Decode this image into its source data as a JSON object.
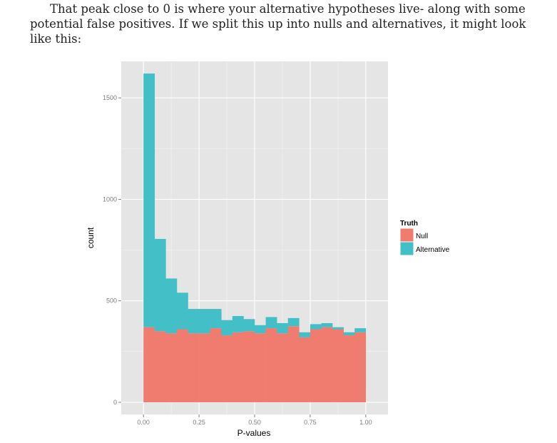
{
  "paragraph": "That peak close to 0 is where your alternative hypotheses live- along with some potential false positives. If we split this up into nulls and alternatives, it might look like this:",
  "colors": {
    "panel": "#e5e5e5",
    "grid_major": "#ffffff",
    "grid_minor": "#f2f2f2",
    "null": "#f07c6f",
    "alternative": "#43bfc7"
  },
  "chart_data": {
    "type": "bar",
    "stacked": true,
    "title": "",
    "xlabel": "P-values",
    "ylabel": "count",
    "xlim": [
      -0.1,
      1.1
    ],
    "ylim": [
      -60,
      1680
    ],
    "x_ticks": [
      0.0,
      0.25,
      0.5,
      0.75,
      1.0
    ],
    "x_tick_labels": [
      "0.00",
      "0.25",
      "0.50",
      "0.75",
      "1.00"
    ],
    "y_ticks": [
      0,
      500,
      1000,
      1500
    ],
    "y_tick_labels": [
      "0",
      "500",
      "1000",
      "1500"
    ],
    "bin_width": 0.05,
    "bins": [
      0.0,
      0.05,
      0.1,
      0.15,
      0.2,
      0.25,
      0.3,
      0.35,
      0.4,
      0.45,
      0.5,
      0.55,
      0.6,
      0.65,
      0.7,
      0.75,
      0.8,
      0.85,
      0.9,
      0.95
    ],
    "legend": {
      "title": "Truth",
      "position": "right",
      "entries": [
        "Null",
        "Alternative"
      ]
    },
    "series": [
      {
        "name": "Null",
        "values": [
          370,
          350,
          340,
          360,
          340,
          340,
          365,
          330,
          345,
          350,
          340,
          365,
          340,
          375,
          320,
          360,
          370,
          360,
          330,
          345
        ]
      },
      {
        "name": "Alternative",
        "values": [
          1250,
          455,
          270,
          180,
          120,
          120,
          95,
          75,
          80,
          60,
          40,
          55,
          50,
          40,
          25,
          25,
          20,
          10,
          15,
          20
        ]
      }
    ]
  }
}
